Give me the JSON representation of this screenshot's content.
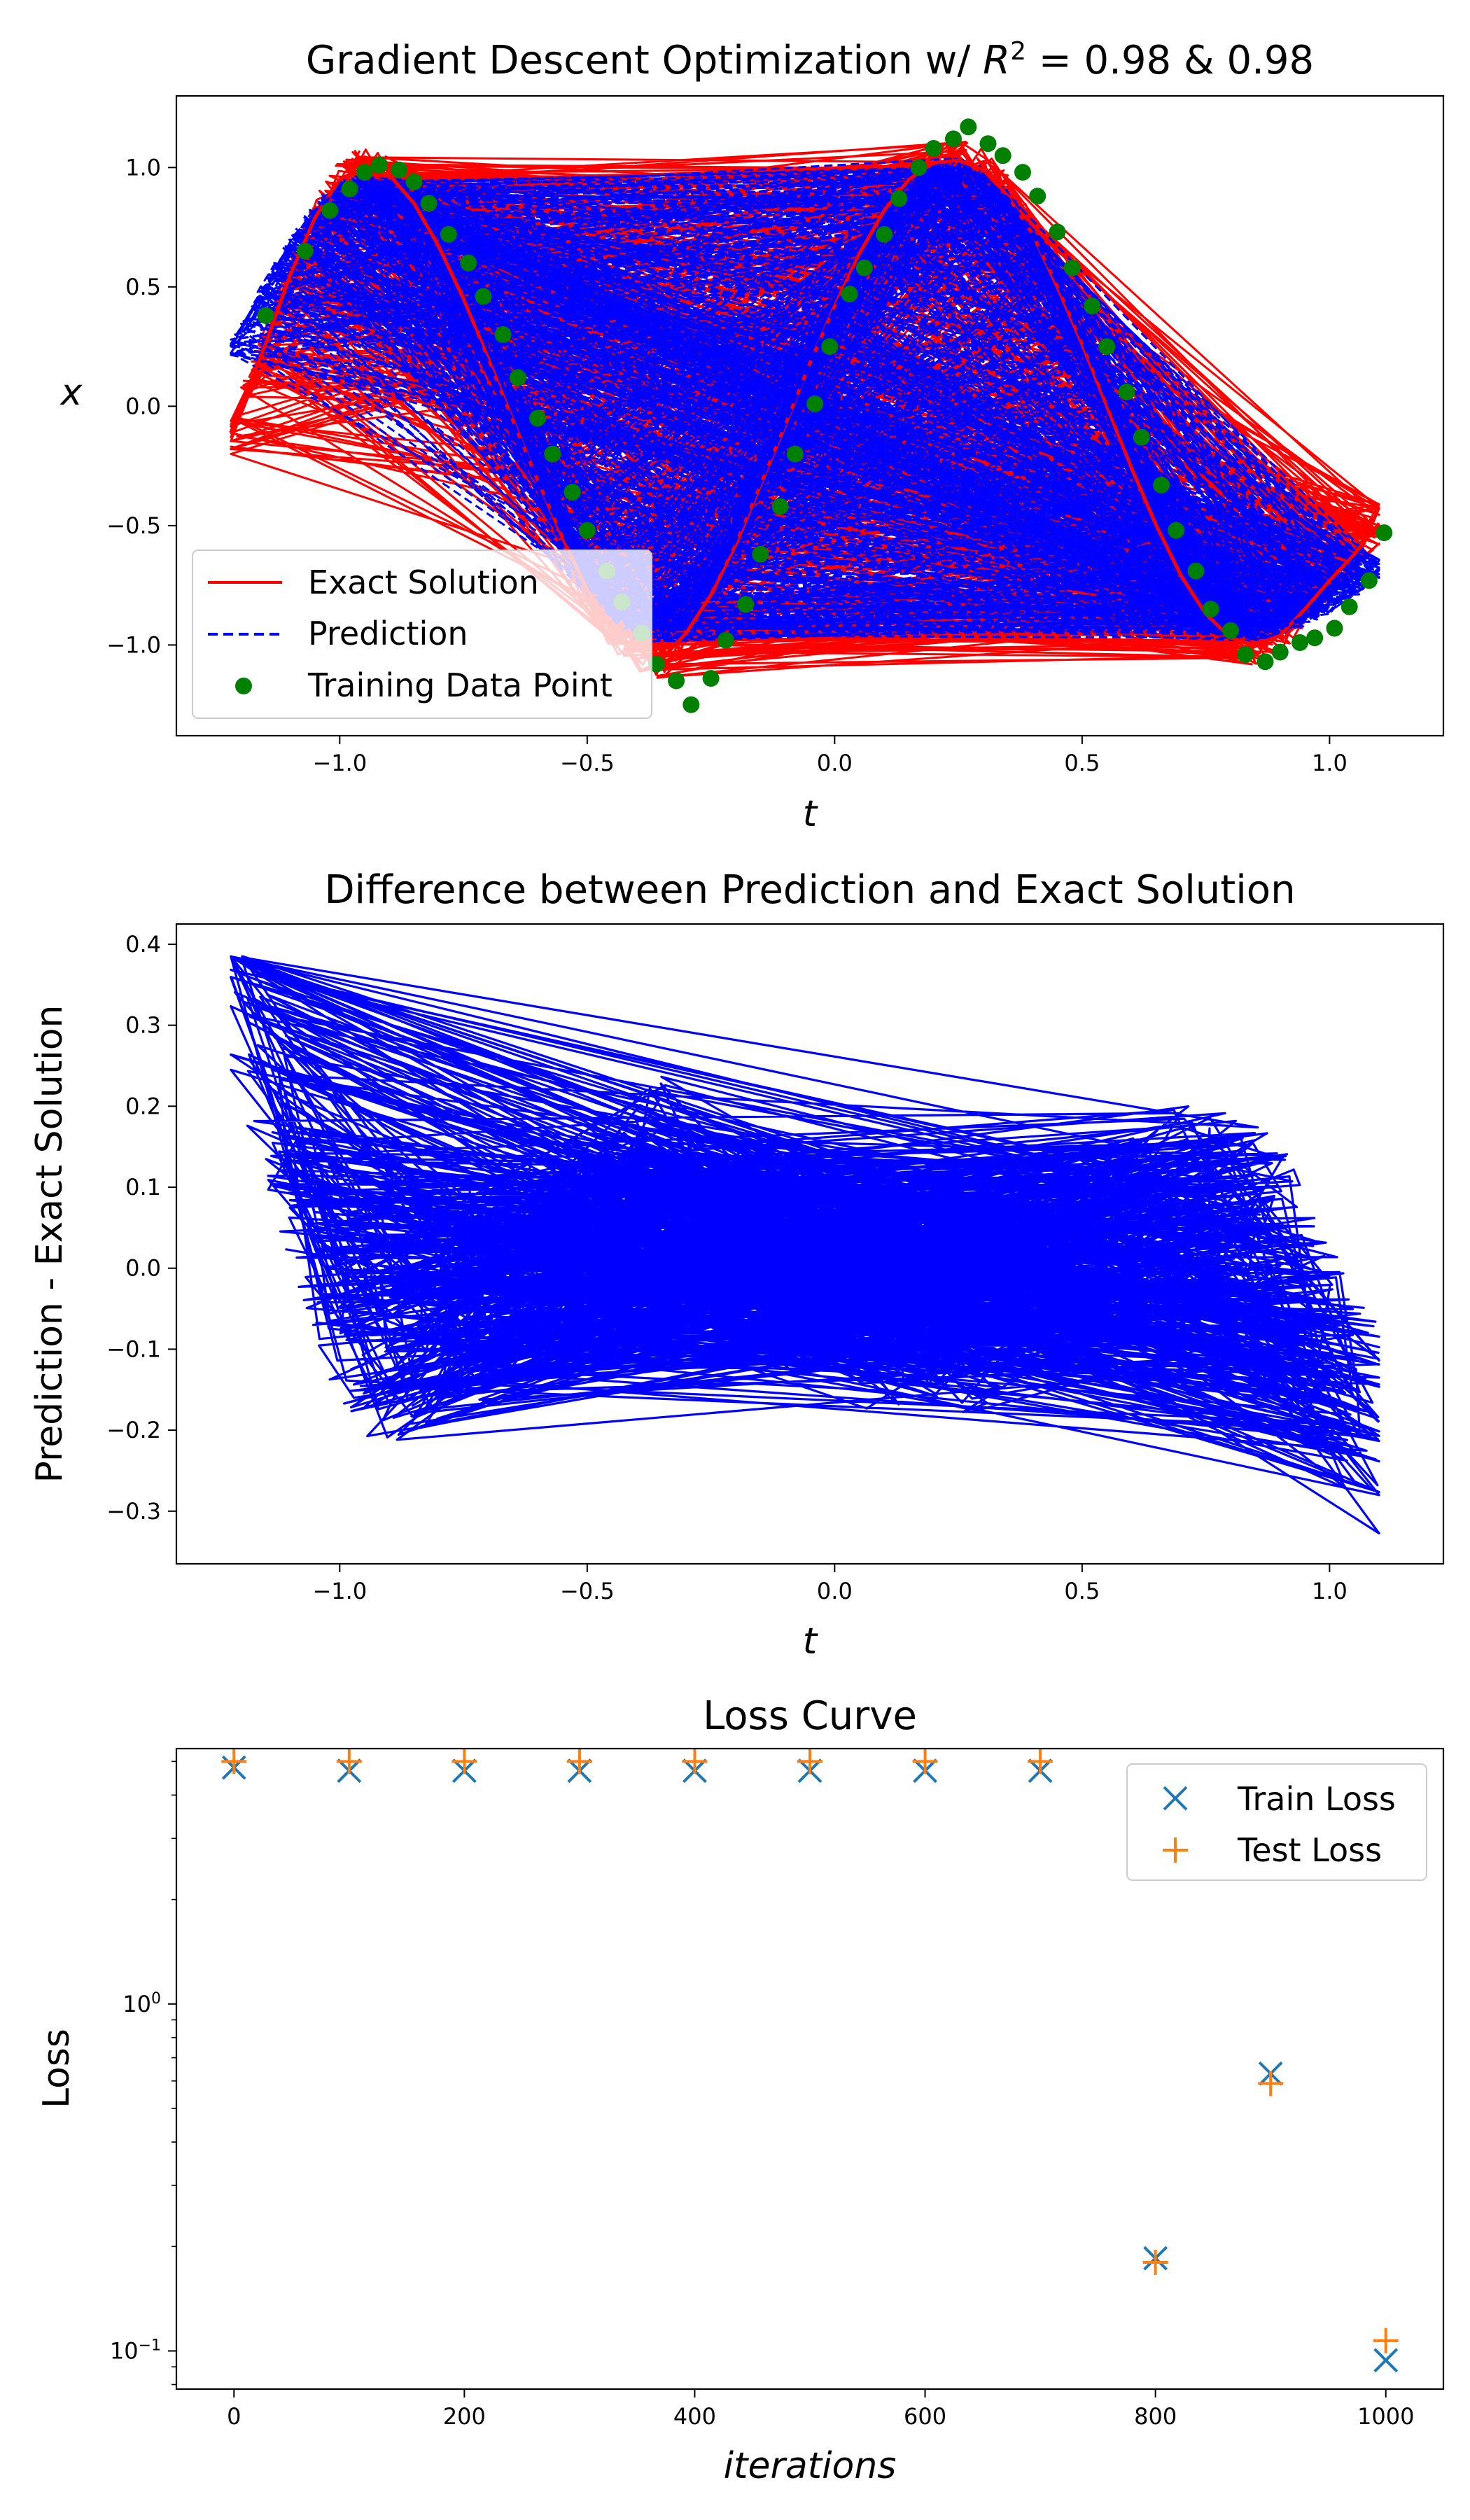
{
  "chart_data": [
    {
      "type": "line",
      "title_main": "Gradient Descent Optimization w/ ",
      "title_r": "R",
      "title_sup": "2",
      "title_rest": " = 0.98 & 0.98",
      "xlabel": "t",
      "ylabel": "x",
      "xlim": [
        -1.33,
        1.23
      ],
      "ylim": [
        -1.38,
        1.3
      ],
      "xticks": [
        -1.0,
        -0.5,
        0.0,
        0.5,
        1.0
      ],
      "xtick_labels": [
        "−1.0",
        "−0.5",
        "0.0",
        "0.5",
        "1.0"
      ],
      "yticks": [
        -1.0,
        -0.5,
        0.0,
        0.5,
        1.0
      ],
      "ytick_labels": [
        "−1.0",
        "−0.5",
        "0.0",
        "0.5",
        "1.0"
      ],
      "legend_position": "lower-left",
      "series": [
        {
          "name": "Exact Solution",
          "style": "solid",
          "color": "#ff0000",
          "x": [
            -1.22,
            -1.15,
            -1.1,
            -1.05,
            -1.0,
            -0.95,
            -0.9,
            -0.85,
            -0.8,
            -0.75,
            -0.7,
            -0.65,
            -0.6,
            -0.55,
            -0.5,
            -0.45,
            -0.4,
            -0.35,
            -0.3,
            -0.25,
            -0.2,
            -0.15,
            -0.1,
            -0.05,
            0.0,
            0.05,
            0.1,
            0.15,
            0.2,
            0.25,
            0.3,
            0.35,
            0.4,
            0.45,
            0.5,
            0.55,
            0.6,
            0.65,
            0.7,
            0.75,
            0.8,
            0.85,
            0.9,
            0.95,
            1.0,
            1.05,
            1.1
          ],
          "y": [
            -0.11,
            0.26,
            0.55,
            0.79,
            0.95,
            1.0,
            0.97,
            0.85,
            0.67,
            0.45,
            0.2,
            -0.06,
            -0.31,
            -0.55,
            -0.77,
            -0.93,
            -1.02,
            -1.06,
            -0.95,
            -0.79,
            -0.58,
            -0.33,
            -0.08,
            0.18,
            0.42,
            0.64,
            0.82,
            0.95,
            1.02,
            1.03,
            0.99,
            0.88,
            0.72,
            0.5,
            0.26,
            0.0,
            -0.26,
            -0.5,
            -0.71,
            -0.87,
            -0.97,
            -1.0,
            -0.96,
            -0.85,
            -0.73,
            -0.62,
            -0.49
          ]
        },
        {
          "name": "Prediction",
          "style": "dashed",
          "color": "#0000ff",
          "x": [
            -1.22,
            -1.15,
            -1.1,
            -1.05,
            -1.0,
            -0.95,
            -0.9,
            -0.85,
            -0.8,
            -0.75,
            -0.7,
            -0.65,
            -0.6,
            -0.55,
            -0.5,
            -0.45,
            -0.4,
            -0.35,
            -0.3,
            -0.25,
            -0.2,
            -0.15,
            -0.1,
            -0.05,
            0.0,
            0.05,
            0.1,
            0.15,
            0.2,
            0.25,
            0.3,
            0.35,
            0.4,
            0.45,
            0.5,
            0.55,
            0.6,
            0.65,
            0.7,
            0.75,
            0.8,
            0.85,
            0.9,
            0.95,
            1.0,
            1.05,
            1.1
          ],
          "y": [
            0.25,
            0.5,
            0.68,
            0.82,
            0.91,
            0.93,
            0.89,
            0.78,
            0.62,
            0.41,
            0.18,
            -0.07,
            -0.31,
            -0.53,
            -0.72,
            -0.86,
            -0.94,
            -0.95,
            -0.89,
            -0.76,
            -0.56,
            -0.32,
            -0.07,
            0.18,
            0.41,
            0.61,
            0.78,
            0.91,
            0.98,
            1.0,
            0.96,
            0.87,
            0.72,
            0.52,
            0.28,
            0.03,
            -0.22,
            -0.45,
            -0.65,
            -0.81,
            -0.91,
            -0.95,
            -0.93,
            -0.88,
            -0.83,
            -0.78,
            -0.68
          ]
        },
        {
          "name": "Training Data Point",
          "style": "scatter",
          "color": "#008000",
          "x": [
            -1.15,
            -1.07,
            -1.02,
            -0.98,
            -0.95,
            -0.92,
            -0.88,
            -0.85,
            -0.82,
            -0.78,
            -0.74,
            -0.71,
            -0.67,
            -0.64,
            -0.6,
            -0.57,
            -0.53,
            -0.5,
            -0.46,
            -0.43,
            -0.39,
            -0.36,
            -0.32,
            -0.29,
            -0.25,
            -0.22,
            -0.18,
            -0.15,
            -0.11,
            -0.08,
            -0.04,
            -0.01,
            0.03,
            0.06,
            0.1,
            0.13,
            0.17,
            0.2,
            0.24,
            0.27,
            0.31,
            0.34,
            0.38,
            0.41,
            0.45,
            0.48,
            0.52,
            0.55,
            0.59,
            0.62,
            0.66,
            0.69,
            0.73,
            0.76,
            0.8,
            0.83,
            0.87,
            0.9,
            0.94,
            0.97,
            1.01,
            1.04,
            1.08,
            1.11
          ],
          "y": [
            0.38,
            0.65,
            0.82,
            0.91,
            0.98,
            1.01,
            0.99,
            0.94,
            0.85,
            0.72,
            0.6,
            0.46,
            0.3,
            0.12,
            -0.05,
            -0.2,
            -0.36,
            -0.52,
            -0.69,
            -0.82,
            -0.95,
            -1.08,
            -1.15,
            -1.25,
            -1.14,
            -0.98,
            -0.83,
            -0.62,
            -0.42,
            -0.2,
            0.01,
            0.25,
            0.47,
            0.58,
            0.72,
            0.87,
            1.0,
            1.08,
            1.12,
            1.17,
            1.1,
            1.05,
            0.98,
            0.88,
            0.73,
            0.58,
            0.42,
            0.25,
            0.06,
            -0.13,
            -0.33,
            -0.52,
            -0.69,
            -0.85,
            -0.94,
            -1.04,
            -1.07,
            -1.03,
            -0.99,
            -0.97,
            -0.93,
            -0.84,
            -0.73,
            -0.53
          ]
        }
      ]
    },
    {
      "type": "line",
      "title": "Difference between Prediction and Exact Solution",
      "xlabel": "t",
      "ylabel": "Prediction - Exact Solution",
      "xlim": [
        -1.33,
        1.23
      ],
      "ylim": [
        -0.365,
        0.425
      ],
      "xticks": [
        -1.0,
        -0.5,
        0.0,
        0.5,
        1.0
      ],
      "xtick_labels": [
        "−1.0",
        "−0.5",
        "0.0",
        "0.5",
        "1.0"
      ],
      "yticks": [
        -0.3,
        -0.2,
        -0.1,
        0.0,
        0.1,
        0.2,
        0.3,
        0.4
      ],
      "ytick_labels": [
        "−0.3",
        "−0.2",
        "−0.1",
        "0.0",
        "0.1",
        "0.2",
        "0.3",
        "0.4"
      ],
      "series": [
        {
          "name": "",
          "color": "#0000ff",
          "x": [
            -1.22,
            -1.15,
            -1.1,
            -1.05,
            -1.0,
            -0.95,
            -0.9,
            -0.85,
            -0.8,
            -0.75,
            -0.7,
            -0.65,
            -0.6,
            -0.55,
            -0.5,
            -0.45,
            -0.4,
            -0.35,
            -0.3,
            -0.25,
            -0.2,
            -0.15,
            -0.1,
            -0.05,
            0.0,
            0.05,
            0.1,
            0.15,
            0.2,
            0.25,
            0.3,
            0.35,
            0.4,
            0.45,
            0.5,
            0.55,
            0.6,
            0.65,
            0.7,
            0.75,
            0.8,
            0.85,
            0.9,
            0.95,
            1.0,
            1.05,
            1.1
          ],
          "y": [
            0.36,
            0.24,
            0.13,
            0.03,
            -0.04,
            -0.07,
            -0.08,
            -0.07,
            -0.05,
            -0.04,
            -0.02,
            -0.01,
            0.0,
            0.02,
            0.05,
            0.07,
            0.08,
            0.11,
            0.06,
            0.03,
            0.02,
            0.01,
            0.01,
            0.0,
            -0.01,
            -0.03,
            -0.04,
            -0.04,
            -0.04,
            -0.03,
            -0.03,
            -0.01,
            0.0,
            0.02,
            0.02,
            0.03,
            0.04,
            0.05,
            0.06,
            0.06,
            0.06,
            0.05,
            0.03,
            -0.03,
            -0.1,
            -0.16,
            -0.19
          ]
        }
      ]
    },
    {
      "type": "scatter",
      "title": "Loss Curve",
      "xlabel": "iterations",
      "ylabel": "Loss",
      "xlim": [
        -50,
        1050
      ],
      "ylim_log10": [
        -1.11,
        0.736
      ],
      "log_y": true,
      "xticks": [
        0,
        200,
        400,
        600,
        800,
        1000
      ],
      "xtick_labels": [
        "0",
        "200",
        "400",
        "600",
        "800",
        "1000"
      ],
      "yticks_major_log10": [
        -1,
        0
      ],
      "ytick_labels": [
        {
          "base": "10",
          "exp": "−1"
        },
        {
          "base": "10",
          "exp": "0"
        }
      ],
      "legend_position": "upper-right",
      "series": [
        {
          "name": "Train Loss",
          "marker": "x",
          "color": "#1f77b4",
          "x": [
            0,
            100,
            200,
            300,
            400,
            500,
            600,
            700,
            800,
            900,
            1000
          ],
          "y": [
            4.8,
            4.7,
            4.7,
            4.7,
            4.7,
            4.7,
            4.7,
            4.7,
            0.185,
            0.63,
            0.094
          ]
        },
        {
          "name": "Test Loss",
          "marker": "+",
          "color": "#ff7f0e",
          "x": [
            0,
            100,
            200,
            300,
            400,
            500,
            600,
            700,
            800,
            900,
            1000
          ],
          "y": [
            5.0,
            5.0,
            5.0,
            5.0,
            5.0,
            5.0,
            5.0,
            5.0,
            0.18,
            0.59,
            0.107
          ]
        }
      ]
    }
  ]
}
